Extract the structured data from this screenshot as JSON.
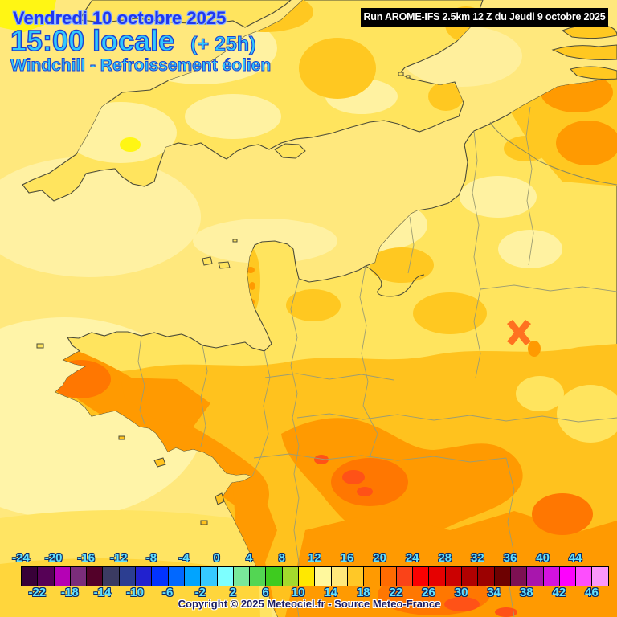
{
  "header": {
    "date": "Vendredi 10 octobre 2025",
    "time": "15:00 locale",
    "time_offset": "(+ 25h)",
    "parameter": "Windchill - Refroissement éolien"
  },
  "run_box": {
    "text": "Run AROME-IFS 2.5km 12 Z du Jeudi 9 octobre 2025"
  },
  "footer": {
    "copyright": "Copyright © 2025 Meteociel.fr - Source Meteo-France"
  },
  "scale": {
    "start_value": -24,
    "step": 2,
    "top_labels": [
      -24,
      -20,
      -16,
      -12,
      -8,
      -4,
      0,
      4,
      8,
      12,
      16,
      20,
      24,
      28,
      32,
      36,
      40,
      44
    ],
    "bottom_labels": [
      -22,
      -18,
      -14,
      -10,
      -6,
      -2,
      2,
      6,
      10,
      14,
      18,
      22,
      26,
      30,
      34,
      38,
      42,
      46
    ],
    "cell_colors": [
      "#380138",
      "#560156",
      "#b501b5",
      "#7b2d7b",
      "#530129",
      "#3b3b62",
      "#2c3e91",
      "#2121cf",
      "#0233fe",
      "#0168ff",
      "#01a4ff",
      "#36caff",
      "#7dffff",
      "#79e89a",
      "#53d653",
      "#3ecb1f",
      "#a3da2d",
      "#ffe800",
      "#fff89d",
      "#ffe87b",
      "#ffc827",
      "#ff9a01",
      "#ff6b01",
      "#fa4318",
      "#fb0101",
      "#e60101",
      "#cb0101",
      "#b00101",
      "#9c0101",
      "#6d0101",
      "#7d1053",
      "#a816ad",
      "#d312e0",
      "#fd02fd",
      "#fd4efd",
      "#fb97fb"
    ],
    "label_color": "#62e1ff"
  },
  "map": {
    "palette": {
      "sea": "#ffe87d",
      "sea_pale": "#fff4a8",
      "sea_gold": "#ffd63c",
      "land_yellow": "#ffe45e",
      "land_pale": "#fff2a1",
      "bright_yellow": "#fff614",
      "gold": "#ffc21e",
      "orange": "#ff9a01",
      "deep_orange": "#ff7701",
      "red_orange": "#ff5217",
      "coastline": "#4b4b38",
      "border": "#9d9d72"
    }
  }
}
